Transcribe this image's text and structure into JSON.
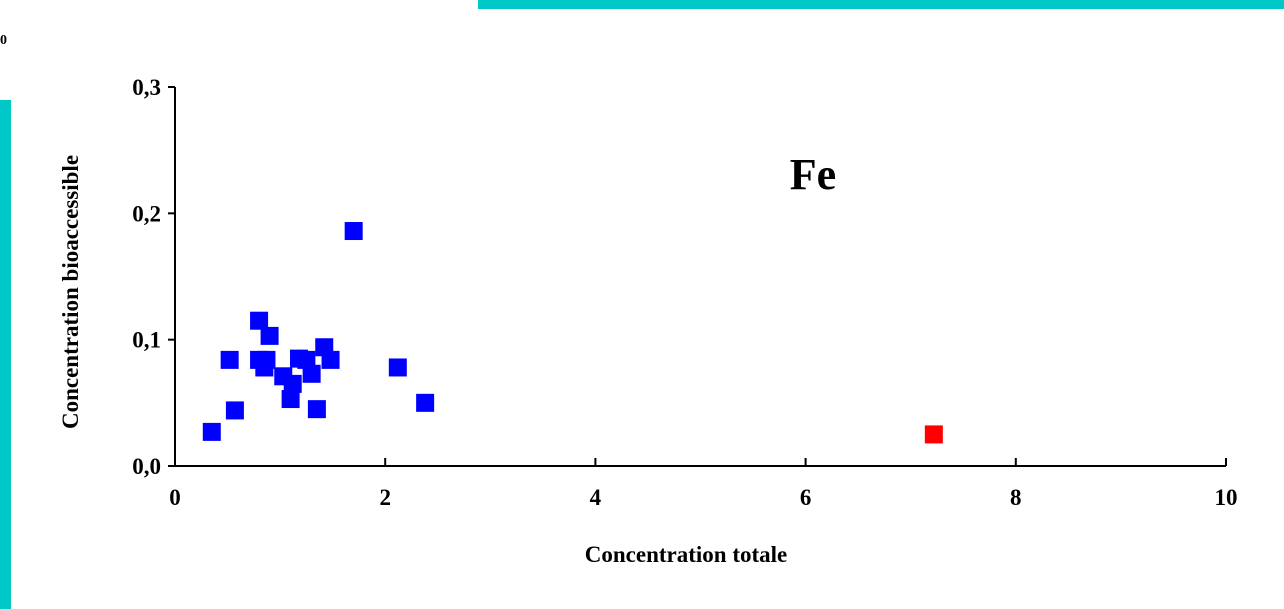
{
  "corner_text": "0",
  "chart_data": {
    "type": "scatter",
    "title": "",
    "annotation": "Fe",
    "xlabel": "Concentration totale",
    "ylabel": "Concentration bioaccessible",
    "xlim": [
      0,
      10
    ],
    "ylim": [
      0,
      0.3
    ],
    "x_ticks": [
      {
        "value": 0,
        "label": "0"
      },
      {
        "value": 2,
        "label": "2"
      },
      {
        "value": 4,
        "label": "4"
      },
      {
        "value": 6,
        "label": "6"
      },
      {
        "value": 8,
        "label": "8"
      },
      {
        "value": 10,
        "label": "10"
      }
    ],
    "y_ticks": [
      {
        "value": 0,
        "label": "0,0"
      },
      {
        "value": 0.1,
        "label": "0,1"
      },
      {
        "value": 0.2,
        "label": "0,2"
      },
      {
        "value": 0.3,
        "label": "0,3"
      }
    ],
    "grid": false,
    "series": [
      {
        "color": "#0000ff",
        "marker": "square",
        "points": [
          [
            0.35,
            0.027
          ],
          [
            0.52,
            0.084
          ],
          [
            0.57,
            0.044
          ],
          [
            0.8,
            0.115
          ],
          [
            0.8,
            0.084
          ],
          [
            0.87,
            0.084
          ],
          [
            0.85,
            0.078
          ],
          [
            0.9,
            0.103
          ],
          [
            1.03,
            0.071
          ],
          [
            1.1,
            0.053
          ],
          [
            1.12,
            0.065
          ],
          [
            1.18,
            0.085
          ],
          [
            1.25,
            0.084
          ],
          [
            1.3,
            0.073
          ],
          [
            1.35,
            0.045
          ],
          [
            1.42,
            0.094
          ],
          [
            1.48,
            0.084
          ],
          [
            1.7,
            0.186
          ],
          [
            2.12,
            0.078
          ],
          [
            2.38,
            0.05
          ]
        ]
      },
      {
        "color": "#ff0000",
        "marker": "square",
        "points": [
          [
            7.22,
            0.025
          ]
        ]
      }
    ]
  }
}
